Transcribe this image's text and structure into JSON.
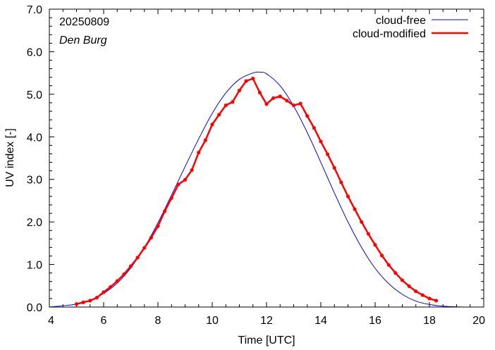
{
  "chart_data": {
    "type": "line",
    "xlabel": "Time  [UTC]",
    "ylabel": "UV index  [-]",
    "xlim": [
      4,
      20
    ],
    "ylim": [
      0,
      7
    ],
    "x_ticks": [
      "4",
      "6",
      "8",
      "10",
      "12",
      "14",
      "16",
      "18",
      "20"
    ],
    "y_ticks": [
      "0.0",
      "1.0",
      "2.0",
      "3.0",
      "4.0",
      "5.0",
      "6.0",
      "7.0"
    ],
    "annotations": {
      "date": "20250809",
      "location": "Den Burg"
    },
    "legend_position": "top-right",
    "series": [
      {
        "name": "cloud-free",
        "color": "#0000ff",
        "smooth": true,
        "x": [
          4.0,
          4.5,
          5.0,
          5.5,
          6.0,
          6.5,
          7.0,
          7.5,
          8.0,
          8.5,
          9.0,
          9.5,
          10.0,
          10.5,
          11.0,
          11.5,
          11.75,
          12.0,
          12.5,
          13.0,
          13.5,
          14.0,
          14.5,
          15.0,
          15.5,
          16.0,
          16.5,
          17.0,
          17.5,
          18.0,
          18.5,
          19.0,
          19.5,
          20.0
        ],
        "values": [
          0.0,
          0.03,
          0.07,
          0.16,
          0.32,
          0.56,
          0.92,
          1.4,
          1.98,
          2.63,
          3.3,
          3.95,
          4.55,
          5.03,
          5.35,
          5.5,
          5.52,
          5.48,
          5.2,
          4.72,
          4.1,
          3.4,
          2.68,
          2.0,
          1.4,
          0.91,
          0.55,
          0.3,
          0.14,
          0.06,
          0.02,
          0.005,
          0.0,
          0.0
        ]
      },
      {
        "name": "cloud-modified",
        "color": "#ff0000",
        "markers": true,
        "x": [
          5.0,
          5.25,
          5.5,
          5.75,
          6.0,
          6.25,
          6.5,
          6.75,
          7.0,
          7.25,
          7.5,
          7.75,
          8.0,
          8.25,
          8.5,
          8.75,
          9.0,
          9.25,
          9.5,
          9.75,
          10.0,
          10.25,
          10.5,
          10.75,
          11.0,
          11.25,
          11.5,
          11.75,
          12.0,
          12.25,
          12.5,
          12.75,
          13.0,
          13.25,
          13.5,
          13.75,
          14.0,
          14.25,
          14.5,
          14.75,
          15.0,
          15.25,
          15.5,
          15.75,
          16.0,
          16.25,
          16.5,
          16.75,
          17.0,
          17.25,
          17.5,
          17.75,
          18.0,
          18.25
        ],
        "values": [
          0.07,
          0.11,
          0.15,
          0.22,
          0.35,
          0.47,
          0.61,
          0.77,
          0.96,
          1.16,
          1.39,
          1.63,
          1.9,
          2.25,
          2.56,
          2.88,
          2.99,
          3.22,
          3.63,
          3.92,
          4.29,
          4.52,
          4.74,
          4.82,
          5.09,
          5.31,
          5.37,
          5.04,
          4.77,
          4.91,
          4.95,
          4.85,
          4.74,
          4.78,
          4.49,
          4.21,
          3.89,
          3.59,
          3.27,
          2.93,
          2.6,
          2.3,
          2.0,
          1.72,
          1.46,
          1.21,
          0.99,
          0.8,
          0.63,
          0.49,
          0.37,
          0.28,
          0.2,
          0.15
        ]
      }
    ]
  }
}
